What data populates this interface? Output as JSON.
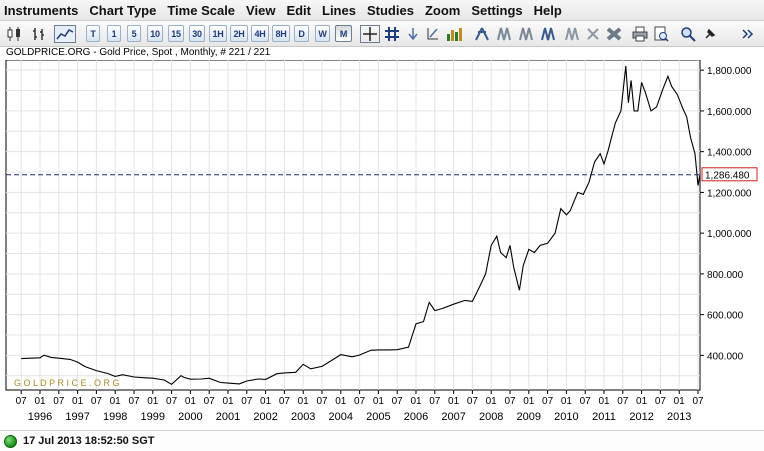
{
  "menu": [
    "Instruments",
    "Chart Type",
    "Time Scale",
    "View",
    "Edit",
    "Lines",
    "Studies",
    "Zoom",
    "Settings",
    "Help"
  ],
  "toolbar": {
    "interval_buttons": [
      "T",
      "1",
      "5",
      "10",
      "15",
      "30",
      "1H",
      "2H",
      "4H",
      "8H",
      "D",
      "W",
      "M"
    ],
    "active_interval": "M",
    "icons": [
      "candlestick-icon",
      "ohlc-bar-icon",
      "line-chart-icon",
      "crosshair-icon",
      "grid-icon",
      "indicator-icon",
      "draw-line-icon",
      "histogram-icon",
      "trendline-icon",
      "delete-icon",
      "print-icon",
      "print-preview-icon",
      "zoom-icon",
      "pin-icon",
      "more-icon"
    ]
  },
  "chart_title": "GOLDPRICE.ORG - Gold Price, Spot , Monthly, # 221 / 221",
  "watermark": "G O L D P R I C E . O R G",
  "status": {
    "timestamp": "17 Jul 2013 18:52:50 SGT",
    "connection_color": "#1e9e1e"
  },
  "colors": {
    "line": "#000000",
    "current_line": "#1a2a7a",
    "price_box": "#cc2222"
  },
  "chart_data": {
    "type": "line",
    "title": "GOLDPRICE.ORG - Gold Price, Spot , Monthly, # 221 / 221",
    "xlabel": "",
    "ylabel": "",
    "x_ticks": [
      "1996",
      "1997",
      "1998",
      "1999",
      "2000",
      "2001",
      "2002",
      "2003",
      "2004",
      "2005",
      "2006",
      "2007",
      "2008",
      "2009",
      "2010",
      "2011",
      "2012",
      "2013"
    ],
    "x_minor_label": [
      "07",
      "01"
    ],
    "y_ticks": [
      "400.000",
      "600.000",
      "800.000",
      "1,000.000",
      "1,200.000",
      "1,400.000",
      "1,600.000",
      "1,800.000"
    ],
    "ylim": [
      230,
      1850
    ],
    "current_price": "1,286.480",
    "grid": true,
    "series": [
      {
        "x": [
          1995.5,
          1996.0,
          1996.1,
          1996.3,
          1996.5,
          1996.8,
          1997.0,
          1997.2,
          1997.5,
          1997.8,
          1998.0,
          1998.2,
          1998.5,
          1998.8,
          1999.0,
          1999.3,
          1999.5,
          1999.75,
          1999.83,
          2000.0,
          2000.3,
          2000.5,
          2000.8,
          2001.0,
          2001.3,
          2001.5,
          2001.8,
          2002.0,
          2002.3,
          2002.5,
          2002.8,
          2003.0,
          2003.2,
          2003.5,
          2003.8,
          2004.0,
          2004.3,
          2004.5,
          2004.8,
          2005.0,
          2005.3,
          2005.5,
          2005.8,
          2006.0,
          2006.2,
          2006.35,
          2006.5,
          2006.7,
          2007.0,
          2007.3,
          2007.5,
          2007.7,
          2007.85,
          2008.0,
          2008.15,
          2008.25,
          2008.4,
          2008.5,
          2008.6,
          2008.75,
          2008.85,
          2009.0,
          2009.15,
          2009.3,
          2009.5,
          2009.7,
          2009.85,
          2010.0,
          2010.1,
          2010.3,
          2010.45,
          2010.6,
          2010.75,
          2010.9,
          2011.0,
          2011.1,
          2011.3,
          2011.45,
          2011.58,
          2011.65,
          2011.72,
          2011.8,
          2011.9,
          2012.0,
          2012.1,
          2012.25,
          2012.4,
          2012.55,
          2012.7,
          2012.8,
          2012.95,
          2013.1,
          2013.2,
          2013.3,
          2013.42,
          2013.5,
          2013.55
        ],
        "y": [
          384,
          388,
          401,
          390,
          386,
          380,
          367,
          345,
          325,
          311,
          297,
          305,
          294,
          290,
          288,
          279,
          258,
          300,
          292,
          283,
          284,
          288,
          267,
          264,
          260,
          274,
          284,
          282,
          310,
          314,
          317,
          356,
          334,
          346,
          380,
          404,
          393,
          402,
          425,
          427,
          427,
          428,
          440,
          555,
          566,
          660,
          620,
          630,
          651,
          670,
          665,
          740,
          800,
          940,
          985,
          905,
          880,
          940,
          830,
          720,
          840,
          920,
          905,
          940,
          950,
          1000,
          1120,
          1090,
          1110,
          1200,
          1190,
          1250,
          1350,
          1390,
          1340,
          1400,
          1540,
          1600,
          1820,
          1640,
          1750,
          1600,
          1600,
          1740,
          1690,
          1600,
          1620,
          1700,
          1770,
          1720,
          1680,
          1610,
          1570,
          1470,
          1390,
          1234,
          1286
        ]
      }
    ]
  }
}
